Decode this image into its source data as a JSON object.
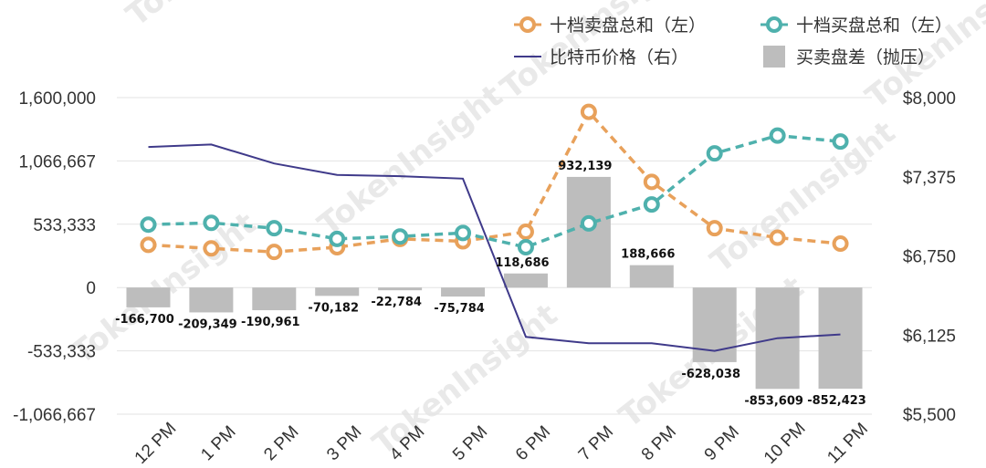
{
  "watermark": "TokenInsight",
  "chart_data": {
    "type": "bar+line",
    "categories": [
      "12 PM",
      "1 PM",
      "2 PM",
      "3 PM",
      "4 PM",
      "5 PM",
      "6 PM",
      "7 PM",
      "8 PM",
      "9 PM",
      "10 PM",
      "11 PM"
    ],
    "y_left": {
      "ticks": [
        "1,600,000",
        "1,066,667",
        "533,333",
        "0",
        "-533,333",
        "-1,066,667"
      ],
      "tick_values": [
        1600000,
        1066667,
        533333,
        0,
        -533333,
        -1066667
      ],
      "ylim": [
        -1066667,
        1600000
      ]
    },
    "y_right": {
      "ticks": [
        "$8,000",
        "$7,375",
        "$6,750",
        "$6,125",
        "$5,500"
      ],
      "tick_values": [
        8000,
        7375,
        6750,
        6125,
        5500
      ],
      "ylim": [
        5500,
        8000
      ]
    },
    "grid": true,
    "legend_position": "top-right",
    "series": [
      {
        "name": "十档卖盘总和（左）",
        "kind": "line",
        "axis": "left",
        "style": "dashed-circle",
        "color": "#e8a15b",
        "values": [
          360000,
          330000,
          300000,
          340000,
          410000,
          390000,
          470000,
          1480000,
          890000,
          500000,
          420000,
          370000
        ]
      },
      {
        "name": "十档买盘总和（左）",
        "kind": "line",
        "axis": "left",
        "style": "dashed-circle",
        "color": "#4fb1ad",
        "values": [
          530000,
          545000,
          500000,
          410000,
          430000,
          460000,
          340000,
          540000,
          700000,
          1130000,
          1280000,
          1230000
        ]
      },
      {
        "name": "比特币价格（右）",
        "kind": "line",
        "axis": "right",
        "style": "solid",
        "color": "#3f3a8a",
        "values": [
          7610,
          7630,
          7480,
          7390,
          7380,
          7360,
          6110,
          6060,
          6060,
          6000,
          6100,
          6130
        ]
      },
      {
        "name": "买卖盘差（抛压）",
        "kind": "bar",
        "axis": "left",
        "color": "#bdbdbd",
        "values": [
          -166700,
          -209349,
          -190961,
          -70182,
          -22784,
          -75784,
          118686,
          932139,
          188666,
          -628038,
          -853609,
          -852423
        ],
        "labels": [
          "-166,700",
          "-209,349",
          "-190,961",
          "-70,182",
          "-22,784",
          "-75,784",
          "118,686",
          "932,139",
          "188,666",
          "-628,038",
          "-853,609",
          "-852,423"
        ]
      }
    ]
  }
}
